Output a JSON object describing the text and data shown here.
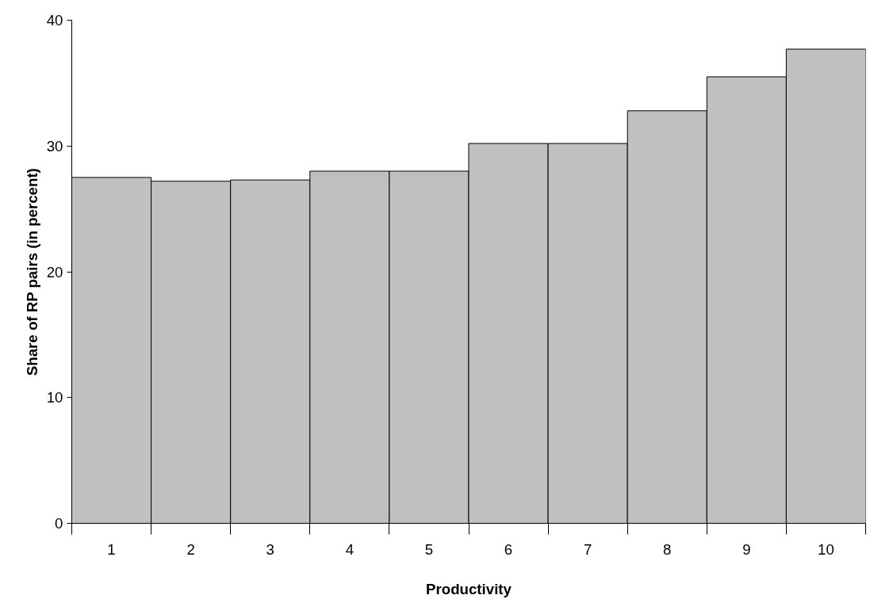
{
  "chart_data": {
    "type": "bar",
    "xlabel": "Productivity",
    "ylabel": "Share of RP pairs (in percent)",
    "categories": [
      "1",
      "2",
      "3",
      "4",
      "5",
      "6",
      "7",
      "8",
      "9",
      "10"
    ],
    "values": [
      27.5,
      27.2,
      27.3,
      28.0,
      28.0,
      30.2,
      30.2,
      32.8,
      35.5,
      37.7
    ],
    "color": "#c0c0c0",
    "ylim": [
      0,
      40
    ],
    "yticks": [
      0,
      10,
      20,
      30,
      40
    ],
    "grid": false
  }
}
